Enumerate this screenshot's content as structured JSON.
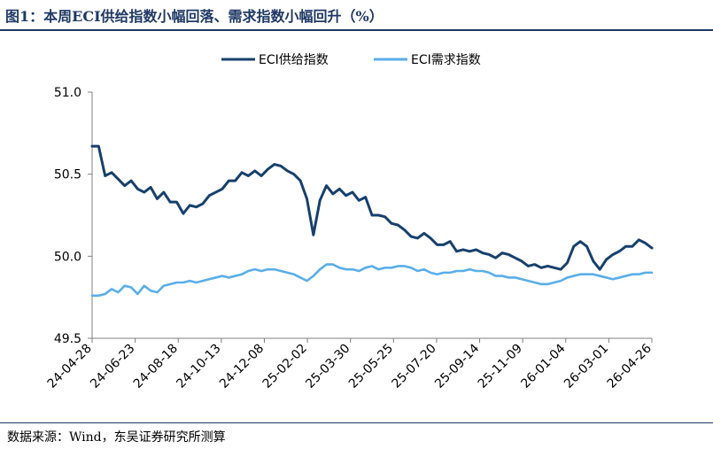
{
  "title": "图1：本周ECI供给指数小幅回落、需求指数小幅回升（%）",
  "source": "数据来源：Wind，东吴证券研究所测算",
  "colors": {
    "supply": "#17406d",
    "demand": "#5aaee8",
    "title": "#1f3864"
  },
  "chart_data": {
    "type": "line",
    "title": "",
    "xlabel": "",
    "ylabel": "",
    "ylim": [
      49.5,
      51.0
    ],
    "yticks": [
      "49.5",
      "50.0",
      "50.5",
      "51.0"
    ],
    "xticks": [
      "24-04-28",
      "24-06-23",
      "24-08-18",
      "24-10-13",
      "24-12-08",
      "25-02-02",
      "25-03-30",
      "25-05-25",
      "25-07-20",
      "25-09-14",
      "25-11-09",
      "26-01-04",
      "26-03-01",
      "26-04-26"
    ],
    "legend_position": "top-center",
    "grid": false,
    "series": [
      {
        "name": "ECI供给指数",
        "color": "#17406d",
        "values": [
          50.67,
          50.67,
          50.49,
          50.51,
          50.47,
          50.43,
          50.46,
          50.41,
          50.39,
          50.42,
          50.35,
          50.39,
          50.33,
          50.33,
          50.26,
          50.31,
          50.3,
          50.32,
          50.37,
          50.39,
          50.41,
          50.46,
          50.46,
          50.51,
          50.49,
          50.52,
          50.49,
          50.53,
          50.56,
          50.55,
          50.52,
          50.5,
          50.46,
          50.35,
          50.13,
          50.34,
          50.43,
          50.38,
          50.41,
          50.37,
          50.39,
          50.34,
          50.36,
          50.25,
          50.25,
          50.24,
          50.2,
          50.19,
          50.16,
          50.12,
          50.11,
          50.14,
          50.11,
          50.07,
          50.07,
          50.09,
          50.03,
          50.04,
          50.03,
          50.04,
          50.02,
          50.01,
          49.99,
          50.02,
          50.01,
          49.99,
          49.97,
          49.94,
          49.95,
          49.93,
          49.94,
          49.93,
          49.92,
          49.96,
          50.06,
          50.09,
          50.06,
          49.97,
          49.92,
          49.98,
          50.01,
          50.03,
          50.06,
          50.06,
          50.1,
          50.08,
          50.05
        ]
      },
      {
        "name": "ECI需求指数",
        "color": "#5aaee8",
        "values": [
          49.76,
          49.76,
          49.77,
          49.8,
          49.78,
          49.82,
          49.81,
          49.77,
          49.82,
          49.79,
          49.78,
          49.82,
          49.83,
          49.84,
          49.84,
          49.85,
          49.84,
          49.85,
          49.86,
          49.87,
          49.88,
          49.87,
          49.88,
          49.89,
          49.91,
          49.92,
          49.91,
          49.92,
          49.92,
          49.91,
          49.9,
          49.89,
          49.87,
          49.85,
          49.88,
          49.92,
          49.95,
          49.95,
          49.93,
          49.92,
          49.92,
          49.91,
          49.93,
          49.94,
          49.92,
          49.93,
          49.93,
          49.94,
          49.94,
          49.93,
          49.91,
          49.92,
          49.9,
          49.89,
          49.9,
          49.9,
          49.91,
          49.91,
          49.92,
          49.91,
          49.91,
          49.9,
          49.88,
          49.88,
          49.87,
          49.87,
          49.86,
          49.85,
          49.84,
          49.83,
          49.83,
          49.84,
          49.85,
          49.87,
          49.88,
          49.89,
          49.89,
          49.89,
          49.88,
          49.87,
          49.86,
          49.87,
          49.88,
          49.89,
          49.89,
          49.9,
          49.9
        ]
      }
    ]
  }
}
